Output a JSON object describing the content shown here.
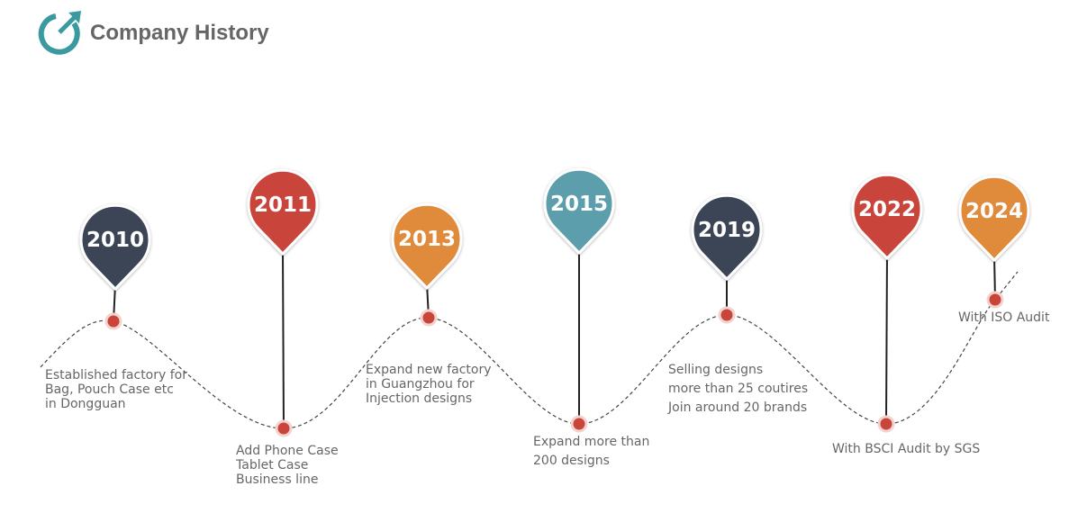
{
  "header": {
    "title": "Company History"
  },
  "milestones": [
    {
      "year": "2010",
      "lines": [
        "Established factory for",
        "Bag, Pouch Case etc",
        "in Dongguan"
      ]
    },
    {
      "year": "2011",
      "lines": [
        "Add Phone Case",
        "Tablet Case",
        "Business line"
      ]
    },
    {
      "year": "2013",
      "lines": [
        "Expand new factory",
        "in Guangzhou for",
        "Injection designs"
      ]
    },
    {
      "year": "2015",
      "lines": [
        "Expand more than",
        "200 designs"
      ]
    },
    {
      "year": "2019",
      "lines": [
        "Selling designs",
        "more than 25 coutires",
        "Join around 20 brands"
      ]
    },
    {
      "year": "2022",
      "lines": [
        "With BSCI Audit by SGS"
      ]
    },
    {
      "year": "2024",
      "lines": [
        "With ISO Audit"
      ]
    }
  ]
}
